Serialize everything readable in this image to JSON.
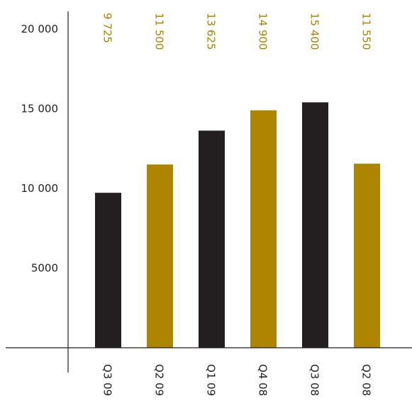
{
  "colors": {
    "dark": "#231f20",
    "gold": "#ad8500",
    "axis": "#231f20",
    "background": "#ffffff"
  },
  "chart_data": {
    "type": "bar",
    "title": "",
    "xlabel": "",
    "ylabel": "",
    "categories": [
      "Q3 09",
      "Q2 09",
      "Q1 09",
      "Q4 08",
      "Q3 08",
      "Q2 08"
    ],
    "values": [
      9725,
      11500,
      13625,
      14900,
      15400,
      11550
    ],
    "value_labels": [
      "9 725",
      "11 500",
      "13 625",
      "14 900",
      "15 400",
      "11 550"
    ],
    "bar_colors": [
      "#231f20",
      "#ad8500",
      "#231f20",
      "#ad8500",
      "#231f20",
      "#ad8500"
    ],
    "label_color": "#ad8500",
    "ylim": [
      0,
      20000
    ],
    "yticks": [
      5000,
      10000,
      15000,
      20000
    ],
    "ytick_labels": [
      "5000",
      "10 000",
      "15 000",
      "20 000"
    ],
    "grid": false,
    "legend": "none",
    "orientation": "vertical"
  }
}
